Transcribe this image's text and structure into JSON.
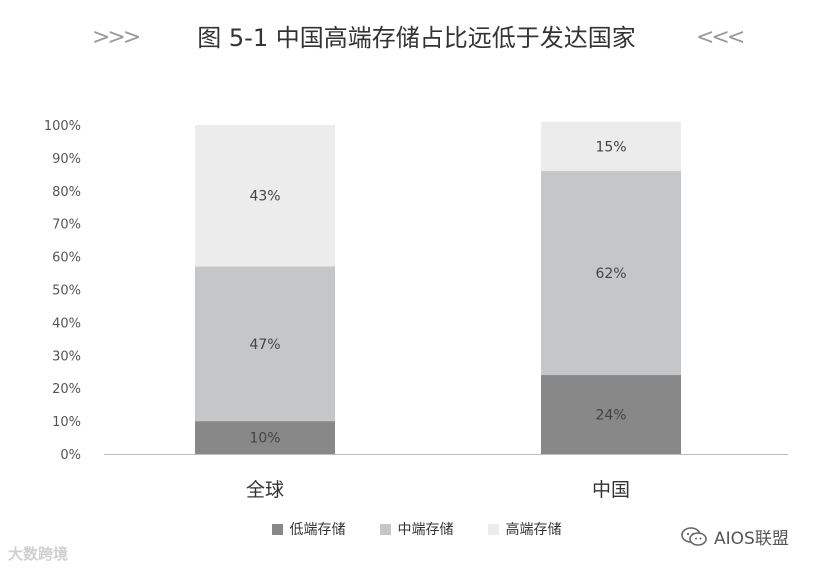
{
  "title": "图 5-1 中国高端存储占比远低于发达国家",
  "title_decor_left": ">>>",
  "title_decor_right": "<<<",
  "chart_data": {
    "type": "bar",
    "stacked": true,
    "percent": true,
    "categories": [
      "全球",
      "中国"
    ],
    "series": [
      {
        "name": "低端存储",
        "values": [
          10,
          24
        ],
        "color": "#888888"
      },
      {
        "name": "中端存储",
        "values": [
          47,
          62
        ],
        "color": "#c5c6c7"
      },
      {
        "name": "高端存储",
        "values": [
          43,
          15
        ],
        "color": "#ececec"
      }
    ],
    "data_labels": [
      [
        "10%",
        "24%"
      ],
      [
        "47%",
        "62%"
      ],
      [
        "43%",
        "15%"
      ]
    ],
    "yticks": [
      "0%",
      "10%",
      "20%",
      "30%",
      "40%",
      "50%",
      "60%",
      "70%",
      "80%",
      "90%",
      "100%"
    ],
    "ylim": [
      0,
      100
    ],
    "grid": false,
    "legend_position": "bottom"
  },
  "watermark_left": "大数跨境",
  "watermark_right": "AIOS联盟"
}
